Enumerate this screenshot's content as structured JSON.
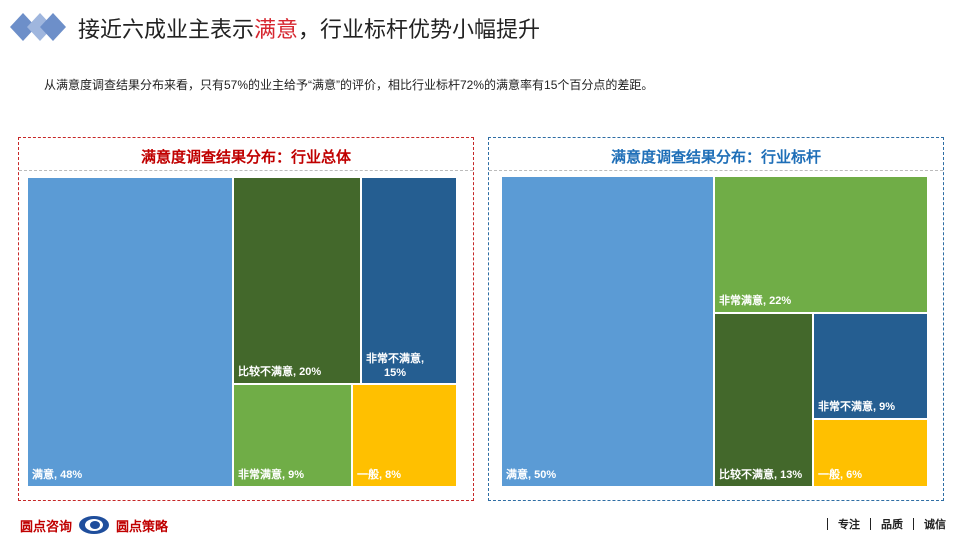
{
  "header": {
    "title_prefix": "接近六成业主表示",
    "title_accent": "满意",
    "title_suffix": "，行业标杆优势小幅提升",
    "subtitle": "从满意度调查结果分布来看，只有57%的业主给予“满意”的评价，相比行业标杆72%的满意率有15个百分点的差距。"
  },
  "colors": {
    "accent_red": "#d6262f",
    "logo_blue": "#6d8fc9",
    "tile_light_blue": "#5b9bd5",
    "tile_dark_green": "#43682b",
    "tile_dark_blue": "#255e91",
    "tile_light_green": "#70ad47",
    "tile_yellow": "#ffc000"
  },
  "chart_data": [
    {
      "type": "treemap",
      "title": "满意度调查结果分布：行业总体",
      "items": [
        {
          "label": "满意",
          "value": 48,
          "display": "满意, 48%"
        },
        {
          "label": "比较不满意",
          "value": 20,
          "display": "比较不满意, 20%"
        },
        {
          "label": "非常不满意",
          "value": 15,
          "display": "非常不满意, 15%"
        },
        {
          "label": "非常满意",
          "value": 9,
          "display": "非常满意, 9%"
        },
        {
          "label": "一般",
          "value": 8,
          "display": "一般, 8%"
        }
      ]
    },
    {
      "type": "treemap",
      "title": "满意度调查结果分布：行业标杆",
      "items": [
        {
          "label": "满意",
          "value": 50,
          "display": "满意, 50%"
        },
        {
          "label": "非常满意",
          "value": 22,
          "display": "非常满意, 22%"
        },
        {
          "label": "比较不满意",
          "value": 13,
          "display": "比较不满意, 13%"
        },
        {
          "label": "非常不满意",
          "value": 9,
          "display": "非常不满意, 9%"
        },
        {
          "label": "一般",
          "value": 6,
          "display": "一般, 6%"
        }
      ]
    }
  ],
  "footer": {
    "brand_left_1": "圆点咨询",
    "brand_left_2": "圆点策略",
    "values": [
      "专注",
      "品质",
      "诚信"
    ]
  }
}
